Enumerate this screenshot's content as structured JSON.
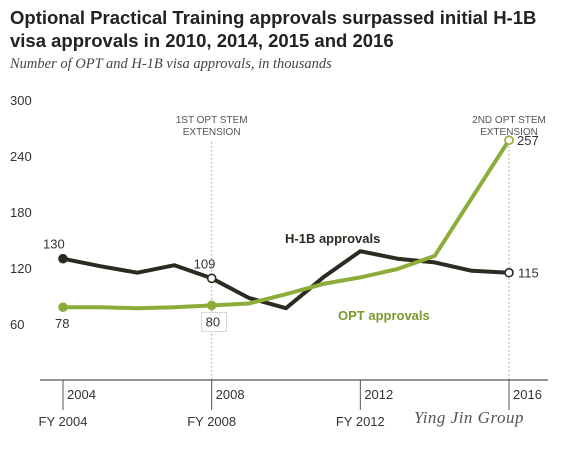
{
  "title": "Optional Practical Training approvals surpassed initial H-1B visa approvals in 2010, 2014, 2015 and 2016",
  "subtitle": "Number of OPT and H-1B visa approvals, in thousands",
  "watermark": "Ying Jin Group",
  "colors": {
    "h1b": "#2b2b22",
    "opt": "#8cad3a",
    "opt_label": "#7a9a2c",
    "axis": "#555555",
    "text": "#333333",
    "guide": "#999999"
  },
  "chart_data": {
    "type": "line",
    "x": [
      2004,
      2005,
      2006,
      2007,
      2008,
      2009,
      2010,
      2011,
      2012,
      2013,
      2014,
      2015,
      2016
    ],
    "xlim": [
      2004,
      2016
    ],
    "ylim": [
      0,
      300
    ],
    "yticks": [
      60,
      120,
      180,
      240,
      300
    ],
    "xticks_upper": [
      {
        "x": 2004,
        "label": "2004"
      },
      {
        "x": 2008,
        "label": "2008"
      },
      {
        "x": 2012,
        "label": "2012"
      },
      {
        "x": 2016,
        "label": "2016"
      }
    ],
    "xticks_lower": [
      {
        "x": 2004,
        "label": "FY 2004"
      },
      {
        "x": 2008,
        "label": "FY 2008"
      },
      {
        "x": 2012,
        "label": "FY 2012"
      }
    ],
    "series": [
      {
        "name": "H-1B approvals",
        "values": [
          130,
          122,
          115,
          123,
          109,
          88,
          77,
          110,
          138,
          130,
          126,
          117,
          115
        ]
      },
      {
        "name": "OPT approvals",
        "values": [
          78,
          78,
          77,
          78,
          80,
          82,
          92,
          103,
          110,
          119,
          133,
          195,
          257
        ]
      }
    ],
    "data_labels": [
      {
        "series": "H-1B approvals",
        "x": 2004,
        "value": 130,
        "text": "130"
      },
      {
        "series": "H-1B approvals",
        "x": 2008,
        "value": 109,
        "text": "109"
      },
      {
        "series": "H-1B approvals",
        "x": 2016,
        "value": 115,
        "text": "115"
      },
      {
        "series": "OPT approvals",
        "x": 2004,
        "value": 78,
        "text": "78"
      },
      {
        "series": "OPT approvals",
        "x": 2008,
        "value": 80,
        "text": "80"
      },
      {
        "series": "OPT approvals",
        "x": 2016,
        "value": 257,
        "text": "257"
      }
    ],
    "annotations": [
      {
        "x": 2008,
        "lines": [
          "1ST OPT STEM",
          "EXTENSION"
        ]
      },
      {
        "x": 2016,
        "lines": [
          "2ND  OPT STEM",
          "EXTENSION"
        ]
      }
    ]
  }
}
